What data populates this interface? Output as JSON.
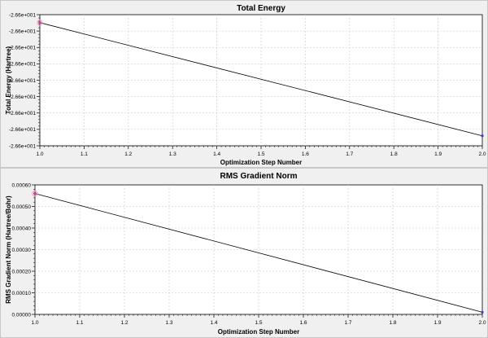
{
  "chart_data": [
    {
      "type": "line",
      "title": "Total Energy",
      "xlabel": "Optimization Step Number",
      "ylabel": "Total Energy (Hartree)",
      "x": [
        1.0,
        2.0
      ],
      "series": [
        {
          "values": [
            -26.586,
            -26.5877
          ]
        }
      ],
      "xlim": [
        1.0,
        2.0
      ],
      "ylim": [
        -26.58785,
        -26.58588
      ],
      "xticks": [
        "1.0",
        "1.1",
        "1.2",
        "1.3",
        "1.4",
        "1.5",
        "1.6",
        "1.7",
        "1.8",
        "1.9",
        "2.0"
      ],
      "yticks": [
        "-2.66e+001",
        "-2.66e+001",
        "-2.66e+001",
        "-2.66e+001",
        "-2.66e+001",
        "-2.66e+001",
        "-2.66e+001",
        "-2.66e+001",
        "-2.66e+001"
      ],
      "grid": true,
      "line_color": "#000000",
      "point_colors": [
        "#c0409a",
        "#3b3bc8"
      ]
    },
    {
      "type": "line",
      "title": "RMS Gradient Norm",
      "xlabel": "Optimization Step Number",
      "ylabel": "RMS Gradient Norm (Hartree/Bohr)",
      "x": [
        1.0,
        2.0
      ],
      "series": [
        {
          "values": [
            0.00056,
            1e-05
          ]
        }
      ],
      "xlim": [
        1.0,
        2.0
      ],
      "ylim": [
        0.0,
        0.0006
      ],
      "xticks": [
        "1.0",
        "1.1",
        "1.2",
        "1.3",
        "1.4",
        "1.5",
        "1.6",
        "1.7",
        "1.8",
        "1.9",
        "2.0"
      ],
      "yticks": [
        "0.00000",
        "0.00010",
        "0.00020",
        "0.00030",
        "0.00040",
        "0.00050",
        "0.00060"
      ],
      "grid": true,
      "line_color": "#000000",
      "point_colors": [
        "#c0409a",
        "#3b3bc8"
      ]
    }
  ]
}
